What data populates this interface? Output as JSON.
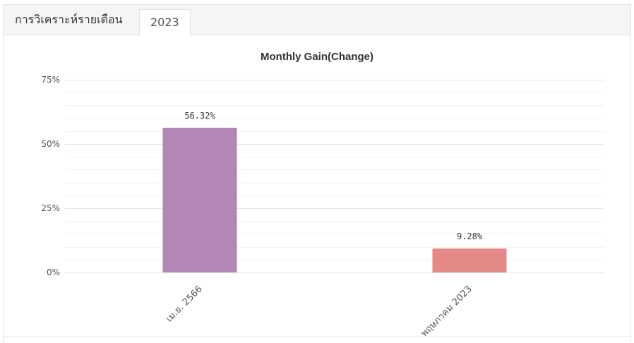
{
  "tabs": {
    "analysis_label": "การวิเคราะห์รายเดือน",
    "year_label": "2023"
  },
  "chart_data": {
    "type": "bar",
    "title": "Monthly Gain(Change)",
    "categories": [
      "เม.ย. 2566",
      "พฤษภาคม 2023"
    ],
    "values": [
      56.32,
      9.28
    ],
    "value_labels": [
      "56.32%",
      "9.28%"
    ],
    "colors": [
      "#b386b5",
      "#e38a86"
    ],
    "ylim": [
      0,
      75
    ],
    "yticks": [
      0,
      25,
      50,
      75
    ],
    "ytick_labels": [
      "0%",
      "25%",
      "50%",
      "75%"
    ],
    "grid": true,
    "legend": "none"
  }
}
